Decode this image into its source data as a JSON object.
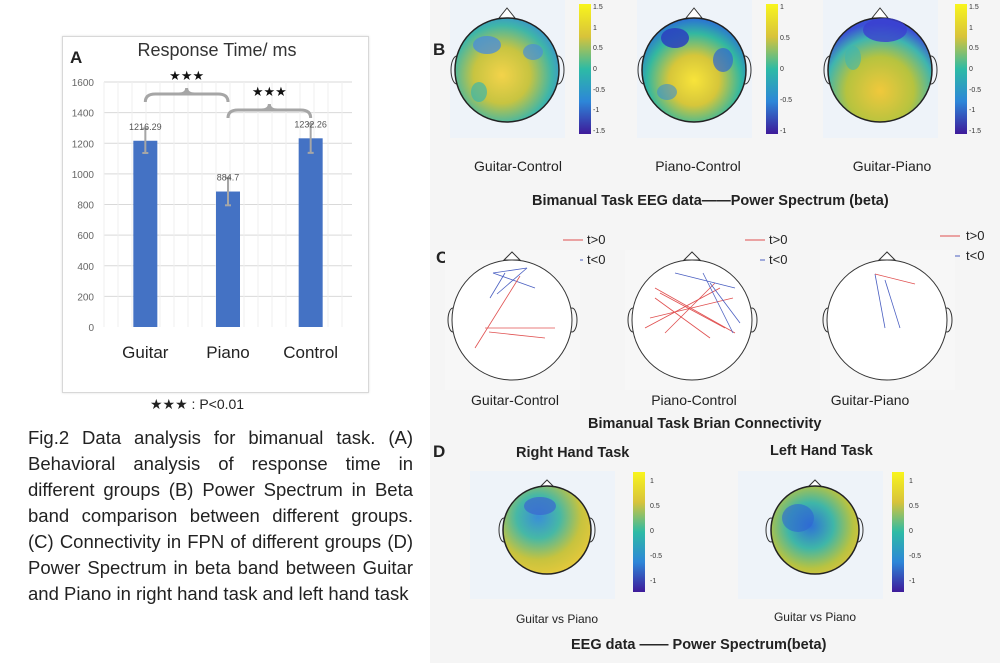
{
  "panel_a": {
    "letter": "A",
    "significance_mark": "★★★",
    "significance_legend": "★★★ : P<0.01"
  },
  "chart_data": {
    "type": "bar",
    "title": "Response Time/ ms",
    "categories": [
      "Guitar",
      "Piano",
      "Control"
    ],
    "values": [
      1216.29,
      884.7,
      1232.26
    ],
    "value_labels": [
      "1216.29",
      "884.7",
      "1232.26"
    ],
    "error": [
      80,
      90,
      95
    ],
    "ylim": [
      0,
      1600
    ],
    "yticks": [
      0,
      200,
      400,
      600,
      800,
      1000,
      1200,
      1400,
      1600
    ],
    "grid": true,
    "bar_color": "#4472C4",
    "significance": [
      {
        "from": "Guitar",
        "to": "Piano",
        "label": "★★★"
      },
      {
        "from": "Piano",
        "to": "Control",
        "label": "★★★"
      }
    ]
  },
  "caption": "Fig.2  Data analysis for bimanual task. (A) Behavioral analysis of response time in different groups (B) Power Spectrum in Beta band comparison between different groups. (C) Connectivity in FPN of different groups (D) Power Spectrum in beta band between Guitar and Piano in right hand task and left hand task",
  "panel_b": {
    "letter": "B",
    "maps": [
      {
        "label": "Guitar-Control",
        "ticks": [
          "1.5",
          "1",
          "0.5",
          "0",
          "-0.5",
          "-1",
          "-1.5"
        ]
      },
      {
        "label": "Piano-Control",
        "ticks": [
          "1",
          "0.5",
          "0",
          "-0.5",
          "-1"
        ]
      },
      {
        "label": "Guitar-Piano",
        "ticks": [
          "1.5",
          "1",
          "0.5",
          "0",
          "-0.5",
          "-1",
          "-1.5"
        ]
      }
    ],
    "title": "Bimanual Task  EEG data——Power Spectrum  (beta)"
  },
  "panel_c": {
    "letter": "C",
    "legend": [
      {
        "label": "t>0",
        "color": "#e05050"
      },
      {
        "label": "t<0",
        "color": "#4a5fc1"
      }
    ],
    "maps": [
      {
        "label": "Guitar-Control"
      },
      {
        "label": "Piano-Control"
      },
      {
        "label": "Guitar-Piano"
      }
    ],
    "title": "Bimanual Task  Brian Connectivity"
  },
  "panel_d": {
    "letter": "D",
    "heads": [
      "Right Hand Task",
      "Left Hand Task"
    ],
    "maps": [
      {
        "label": "Guitar vs Piano",
        "ticks": [
          "1",
          "0.5",
          "0",
          "-0.5",
          "-1"
        ]
      },
      {
        "label": "Guitar vs Piano",
        "ticks": [
          "1",
          "0.5",
          "0",
          "-0.5",
          "-1"
        ]
      }
    ],
    "title": "EEG data —— Power Spectrum(beta)"
  }
}
